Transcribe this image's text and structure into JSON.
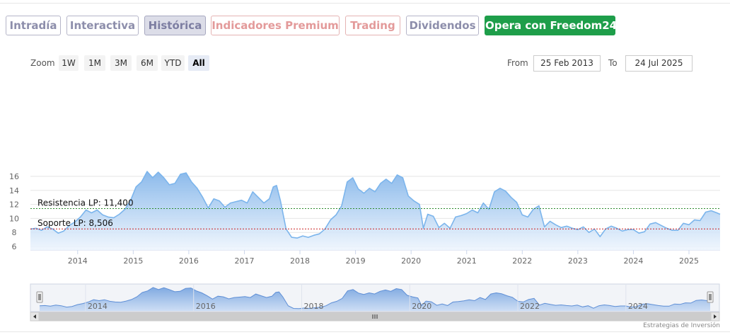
{
  "tabs": [
    {
      "label": "Intradía",
      "style": "grey"
    },
    {
      "label": "Interactiva",
      "style": "grey"
    },
    {
      "label": "Histórica",
      "style": "active"
    },
    {
      "label": "Indicadores Premium",
      "style": "premium"
    },
    {
      "label": "Trading",
      "style": "premium"
    },
    {
      "label": "Dividendos",
      "style": "grey"
    },
    {
      "label": "Opera con Freedom24",
      "style": "cta"
    }
  ],
  "zoom": {
    "label": "Zoom",
    "buttons": [
      "1W",
      "1M",
      "3M",
      "6M",
      "YTD",
      "All"
    ],
    "selected": "All"
  },
  "range": {
    "from_label": "From",
    "from_value": "25 Feb 2013",
    "to_label": "To",
    "to_value": "24 Jul 2025"
  },
  "colors": {
    "line": "#7cb5ec",
    "fill_top": "#85b6ea",
    "fill_bottom": "#eef5fd",
    "resistance": "#2e8b2e",
    "support": "#cc2222",
    "cta": "#1e9e4a"
  },
  "credits": "Estrategias de Inversión",
  "chart_data": {
    "type": "area",
    "title": "",
    "xlabel": "",
    "ylabel": "",
    "x_unit": "year",
    "xlim": [
      2013.15,
      2025.56
    ],
    "ylim": [
      5.5,
      17.5
    ],
    "y_ticks": [
      6,
      8,
      10,
      12,
      14,
      16
    ],
    "x_ticks": [
      "2014",
      "2015",
      "2016",
      "2017",
      "2018",
      "2019",
      "2020",
      "2021",
      "2022",
      "2023",
      "2024",
      "2025"
    ],
    "navigator_ticks": [
      "2014",
      "2016",
      "2018",
      "2020",
      "2022",
      "2024"
    ],
    "grid": true,
    "series": [
      {
        "x": [
          2013.15,
          2013.25,
          2013.35,
          2013.45,
          2013.55,
          2013.65,
          2013.75,
          2013.85,
          2013.95,
          2014.05,
          2014.15,
          2014.25,
          2014.35,
          2014.45,
          2014.55,
          2014.65,
          2014.75,
          2014.85,
          2014.95,
          2015.05,
          2015.15,
          2015.25,
          2015.35,
          2015.45,
          2015.55,
          2015.65,
          2015.75,
          2015.85,
          2015.95,
          2016.05,
          2016.15,
          2016.25,
          2016.35,
          2016.45,
          2016.55,
          2016.65,
          2016.75,
          2016.85,
          2016.95,
          2017.05,
          2017.15,
          2017.25,
          2017.35,
          2017.45,
          2017.52,
          2017.58,
          2017.65,
          2017.75,
          2017.85,
          2017.95,
          2018.05,
          2018.15,
          2018.25,
          2018.35,
          2018.45,
          2018.55,
          2018.65,
          2018.75,
          2018.85,
          2018.95,
          2019.05,
          2019.15,
          2019.25,
          2019.35,
          2019.45,
          2019.55,
          2019.65,
          2019.75,
          2019.85,
          2019.95,
          2020.05,
          2020.15,
          2020.22,
          2020.3,
          2020.4,
          2020.5,
          2020.6,
          2020.7,
          2020.8,
          2020.9,
          2021.0,
          2021.1,
          2021.2,
          2021.3,
          2021.4,
          2021.5,
          2021.6,
          2021.7,
          2021.8,
          2021.9,
          2022.0,
          2022.1,
          2022.2,
          2022.3,
          2022.4,
          2022.5,
          2022.6,
          2022.7,
          2022.8,
          2022.9,
          2023.0,
          2023.1,
          2023.2,
          2023.3,
          2023.4,
          2023.5,
          2023.6,
          2023.7,
          2023.8,
          2023.9,
          2024.0,
          2024.1,
          2024.2,
          2024.3,
          2024.4,
          2024.5,
          2024.6,
          2024.7,
          2024.8,
          2024.9,
          2025.0,
          2025.1,
          2025.2,
          2025.3,
          2025.4,
          2025.5,
          2025.56
        ],
        "y": [
          8.5,
          8.6,
          8.3,
          8.8,
          8.5,
          7.9,
          8.2,
          9.0,
          9.5,
          10.2,
          11.2,
          10.8,
          11.2,
          10.5,
          10.2,
          10.1,
          10.6,
          11.3,
          12.5,
          14.5,
          15.2,
          16.7,
          15.8,
          16.6,
          15.8,
          14.8,
          15.0,
          16.3,
          16.5,
          15.2,
          14.3,
          13.0,
          11.5,
          12.8,
          12.5,
          11.6,
          12.2,
          12.4,
          12.6,
          12.2,
          13.8,
          13.0,
          12.2,
          12.8,
          14.5,
          14.7,
          12.5,
          8.5,
          7.3,
          7.2,
          7.5,
          7.3,
          7.6,
          7.8,
          8.5,
          9.8,
          10.5,
          11.8,
          15.2,
          15.8,
          14.2,
          13.6,
          14.3,
          13.8,
          15.0,
          15.6,
          15.0,
          16.2,
          15.8,
          13.2,
          12.5,
          12.0,
          8.6,
          10.6,
          10.3,
          8.7,
          9.3,
          8.6,
          10.2,
          10.4,
          10.7,
          11.2,
          10.8,
          12.2,
          11.3,
          13.8,
          14.3,
          13.9,
          13.0,
          12.3,
          10.5,
          10.2,
          11.3,
          11.8,
          8.8,
          9.6,
          9.1,
          8.7,
          8.9,
          8.6,
          8.4,
          8.8,
          8.0,
          8.5,
          7.4,
          8.5,
          8.9,
          8.6,
          8.2,
          8.4,
          8.4,
          7.9,
          8.1,
          9.2,
          9.4,
          9.0,
          8.6,
          8.3,
          8.3,
          9.3,
          9.1,
          9.8,
          9.7,
          10.9,
          11.1,
          10.8,
          10.6
        ]
      }
    ],
    "annotations": [
      {
        "label": "Resistencia LP: 11,400",
        "value": 11.4,
        "kind": "resistance"
      },
      {
        "label": "Soporte LP: 8,506",
        "value": 8.506,
        "kind": "support"
      }
    ]
  }
}
